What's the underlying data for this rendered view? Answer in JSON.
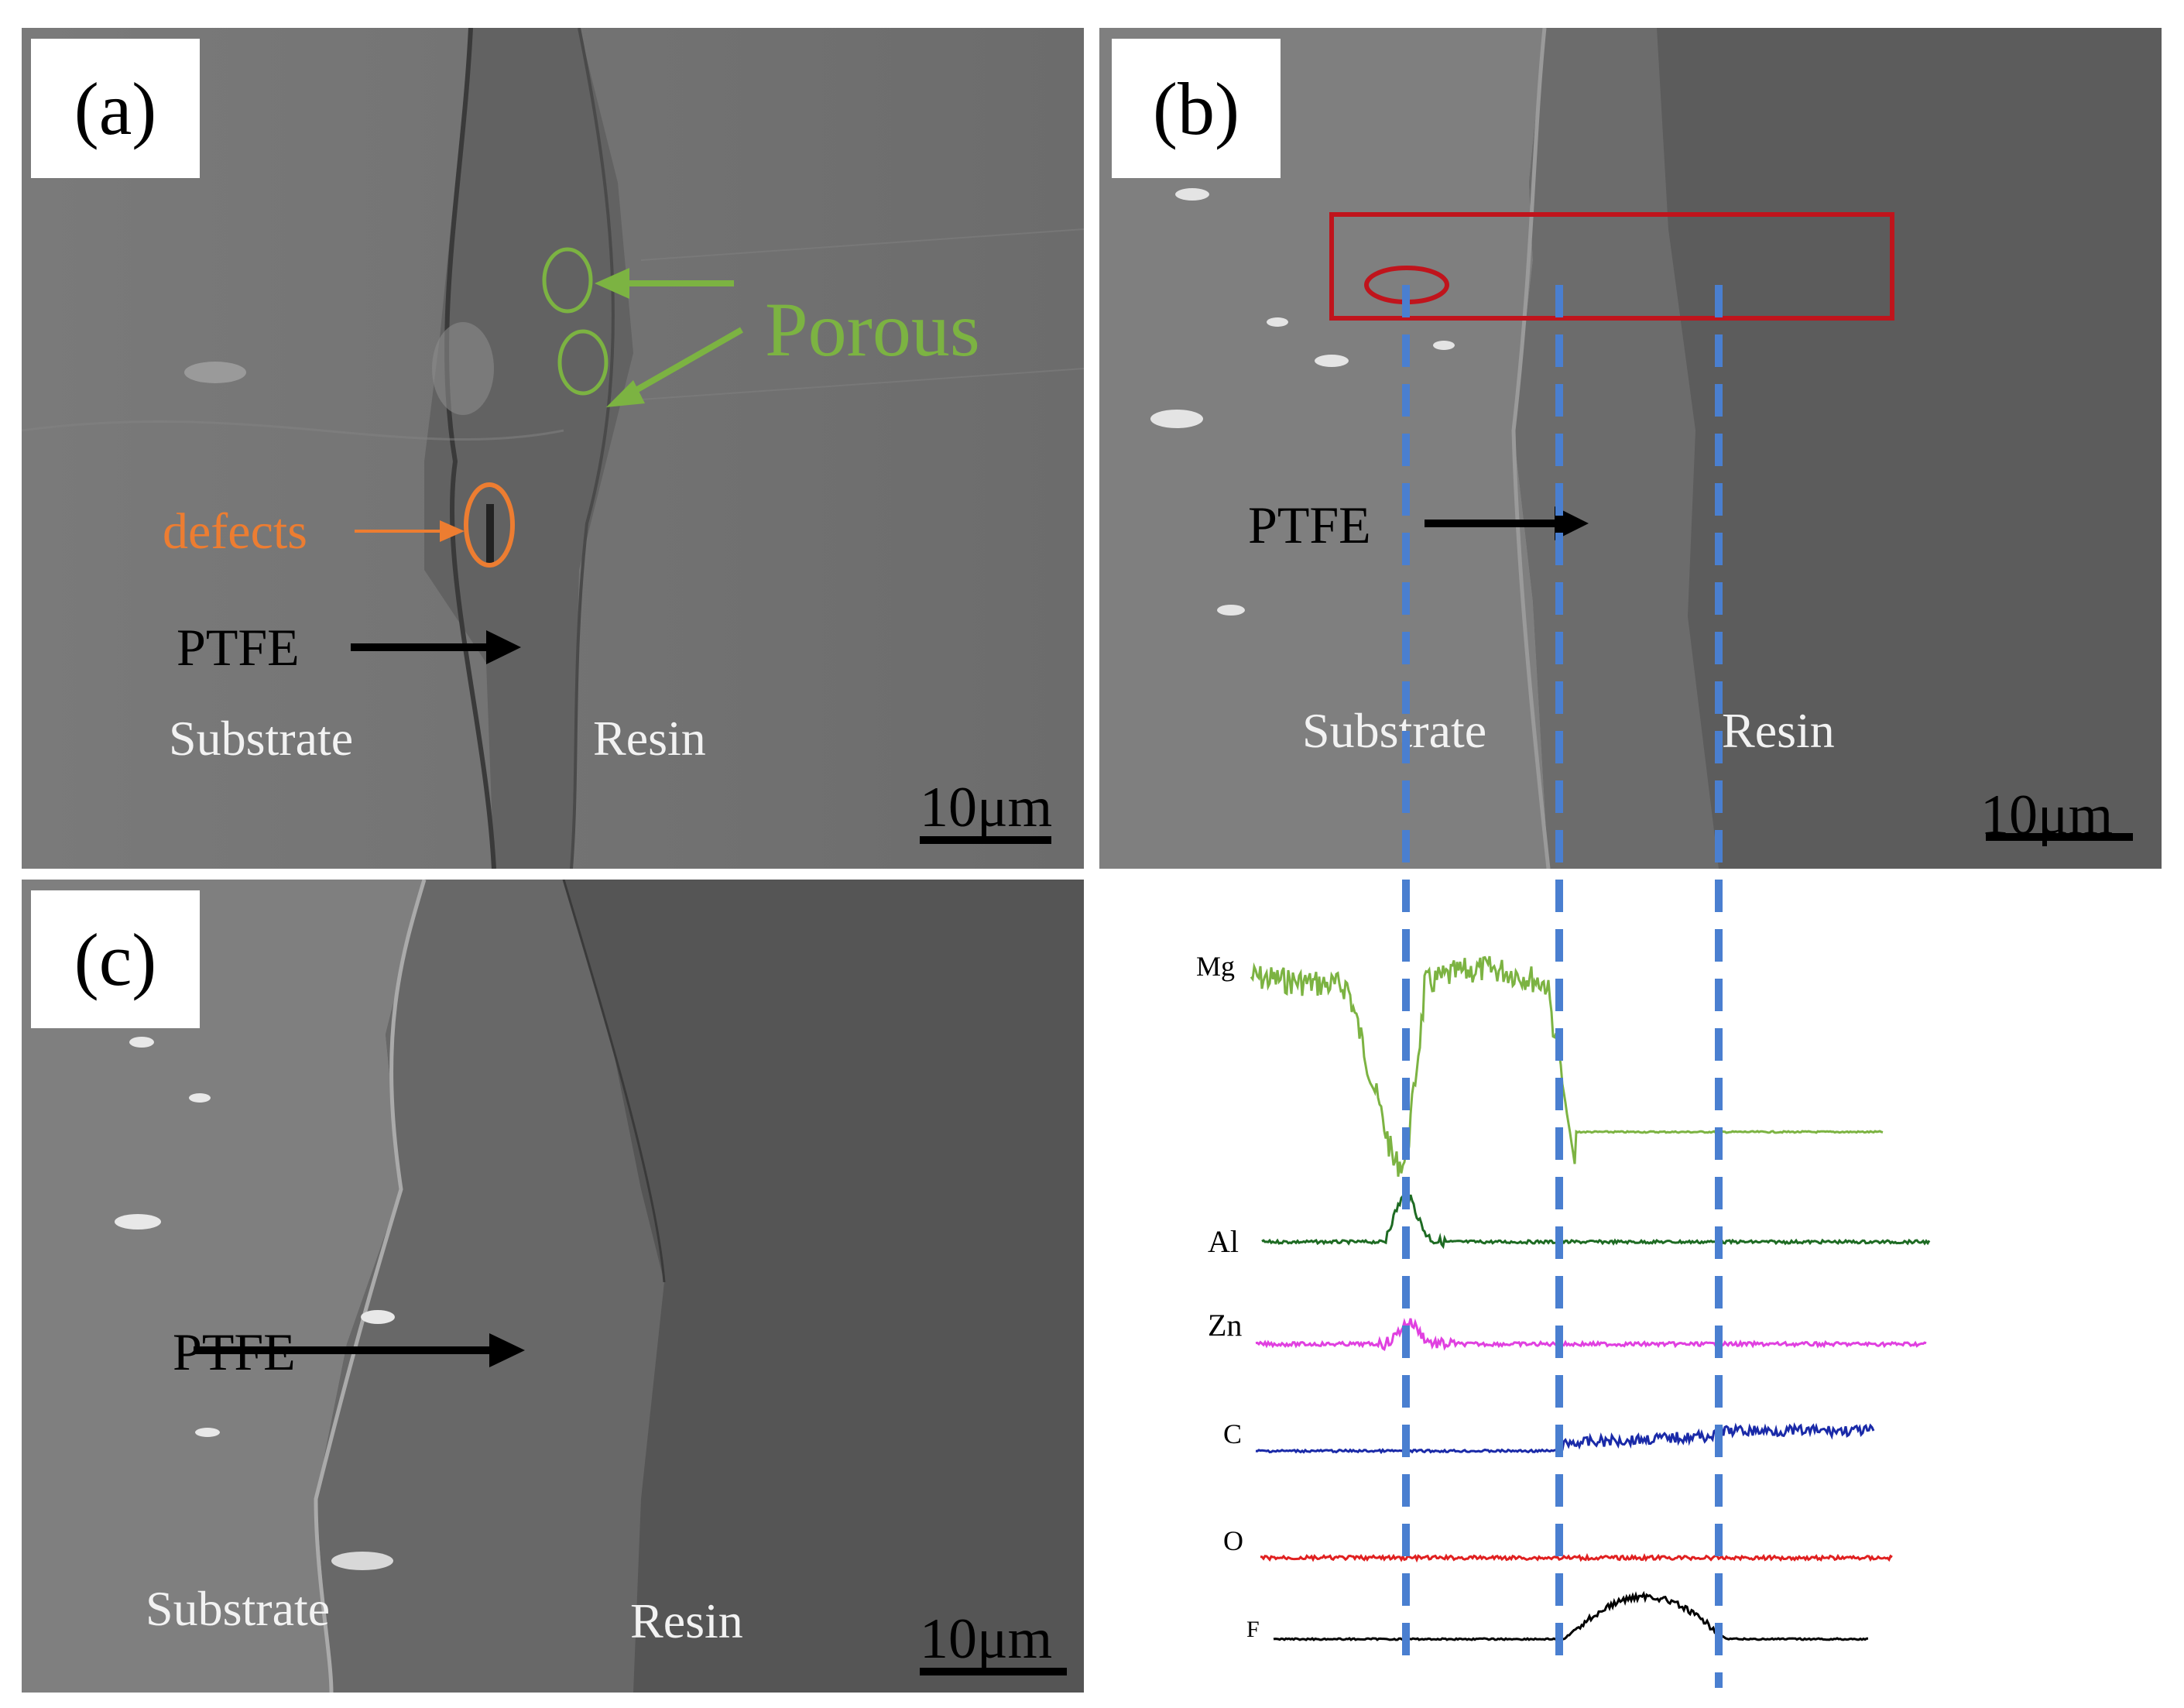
{
  "panels": {
    "a": {
      "label": "(a)",
      "porous_label": "Porous",
      "defects_label": "defects",
      "ptfe_label": "PTFE",
      "substrate_label": "Substrate",
      "resin_label": "Resin",
      "scale_label": "10μm"
    },
    "b": {
      "label": "(b)",
      "ptfe_label": "PTFE",
      "substrate_label": "Substrate",
      "resin_label": "Resin",
      "scale_label": "10μm"
    },
    "c": {
      "label": "(c)",
      "ptfe_label": "PTFE",
      "substrate_label": "Substrate",
      "resin_label": "Resin",
      "scale_label": "10μm"
    }
  },
  "eds_profile": {
    "elements": [
      "Mg",
      "Al",
      "Zn",
      "C",
      "O",
      "F"
    ]
  },
  "colors": {
    "porous": "#7cb342",
    "defects": "#ed7d31",
    "selection_box": "#c0141c",
    "guide_lines": "#4a7fd0",
    "Mg": "#7cb342",
    "Al": "#1e6b23",
    "Zn": "#e040e0",
    "C": "#1a2aa8",
    "O": "#e02020",
    "F": "#000000"
  }
}
